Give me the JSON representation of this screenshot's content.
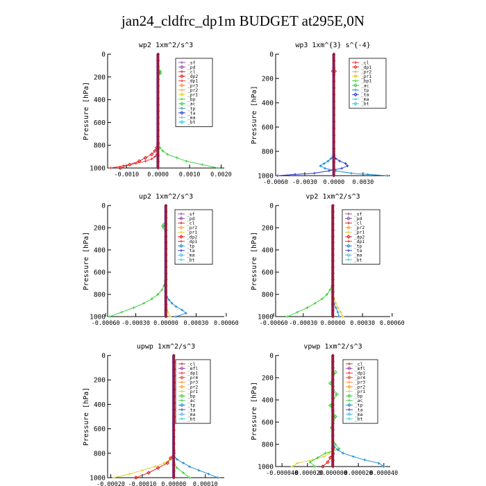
{
  "page_title": "jan24_cldfrc_dp1m  BUDGET at295E,0N",
  "chart_data": [
    {
      "type": "line",
      "title": "wp2  1xm^2/s^3",
      "ylabel": "Pressure [hPa]",
      "ylim": [
        1000,
        0
      ],
      "xlim": [
        -0.0016,
        0.0021
      ],
      "yticks": [
        0,
        200,
        400,
        600,
        800,
        1000
      ],
      "yticklabels": [
        "0",
        "200",
        "400",
        "600",
        "800",
        "1000"
      ],
      "xticks": [
        -0.001,
        0,
        0.001,
        0.002
      ],
      "xticklabels": [
        "-0.0010",
        "0.0000",
        "0.0010",
        "0.0020"
      ],
      "legend": [
        "_sf",
        "_pd",
        "_cl",
        "_dp2",
        "_dp1",
        "_pr3",
        "_pr2",
        "_pr1",
        "_bp",
        "_ac",
        "_tp",
        "_ta",
        "_ma",
        "_bt"
      ],
      "series": [
        {
          "name": "_cl",
          "color": "#dd1111",
          "marker": "diamond",
          "y": [
            1000,
            970,
            940,
            910,
            880,
            850,
            820,
            790
          ],
          "x": [
            -0.0012,
            -0.0009,
            -0.0006,
            -0.0004,
            -0.0002,
            -0.0001,
            -4e-05,
            0
          ]
        },
        {
          "name": "_dp1",
          "color": "#ee2222",
          "marker": "cross",
          "y": [
            1000,
            980,
            960,
            940,
            920,
            900,
            880,
            860
          ],
          "x": [
            -0.0015,
            -0.0011,
            -0.0007,
            -0.0004,
            -0.0002,
            -0.0001,
            -4e-05,
            0
          ]
        },
        {
          "name": "_bp",
          "color": "#33cc33",
          "marker": "cross",
          "y": [
            1000,
            970,
            940,
            910,
            880,
            850,
            820,
            790
          ],
          "x": [
            0.0019,
            0.0014,
            0.0009,
            0.0006,
            0.0003,
            0.00015,
            6e-05,
            0
          ]
        },
        {
          "name": "_ac",
          "color": "#33cc33",
          "marker": "diamond",
          "y": [
            150,
            160,
            170
          ],
          "x": [
            5e-05,
            6e-05,
            5e-05
          ]
        }
      ]
    },
    {
      "type": "line",
      "title": "wp3  1xm^{3} s^{-4}",
      "ylabel": "Pressure [hPa]",
      "ylim": [
        1000,
        0
      ],
      "xlim": [
        -0.006,
        0.0058
      ],
      "yticks": [
        0,
        200,
        400,
        600,
        800,
        1000
      ],
      "yticklabels": [
        "0",
        "200",
        "400",
        "600",
        "800",
        "1000"
      ],
      "xticks": [
        -0.006,
        -0.003,
        0,
        0.003
      ],
      "xticklabels": [
        "-0.0060",
        "-0.0030",
        "0.0000",
        "0.0030"
      ],
      "legend": [
        "_cl",
        "_dp1",
        "_pr2",
        "_pr1",
        "_bp1",
        "_ac",
        "_tp",
        "_ta",
        "_ma",
        "_bt"
      ],
      "series": [
        {
          "name": "_tp",
          "color": "#2233cc",
          "marker": "cross",
          "y": [
            1000,
            990,
            980,
            960,
            940,
            920,
            900,
            880,
            860,
            840,
            820,
            800
          ],
          "x": [
            -0.0058,
            -0.004,
            -0.002,
            -0.0005,
            0.0008,
            0.0014,
            0.0012,
            0.0006,
            0.0002,
            0,
            0,
            0
          ]
        },
        {
          "name": "_ta",
          "color": "#1188cc",
          "marker": "cross",
          "y": [
            1000,
            990,
            980,
            960,
            940,
            920,
            900,
            880,
            860,
            840,
            820
          ],
          "x": [
            0.0055,
            0.0035,
            0.0018,
            0.0002,
            -0.0009,
            -0.0014,
            -0.001,
            -0.0006,
            -0.0003,
            -0.0001,
            0
          ]
        },
        {
          "name": "_cl",
          "color": "#dd1111",
          "marker": "diamond",
          "y": [
            140,
            140
          ],
          "x": [
            -0.0001,
            0.0001
          ]
        }
      ]
    },
    {
      "type": "line",
      "title": "up2  1xm^2/s^3",
      "ylabel": "Pressure [hPa]",
      "ylim": [
        1000,
        0
      ],
      "xlim": [
        -0.00058,
        0.00058
      ],
      "yticks": [
        0,
        200,
        400,
        600,
        800,
        1000
      ],
      "yticklabels": [
        "0",
        "200",
        "400",
        "600",
        "800",
        "1000"
      ],
      "xticks": [
        -0.0006,
        -0.0003,
        0,
        0.0003,
        0.0006
      ],
      "xticklabels": [
        "-0.00060",
        "-0.00030",
        "0.00000",
        "0.00030",
        "0.00060"
      ],
      "legend": [
        "_sf",
        "_pd",
        "_cl",
        "_pr2",
        "_pr1",
        "_dp2",
        "_dp1",
        "_tp",
        "_ta",
        "_ma",
        "_bt"
      ],
      "series": [
        {
          "name": "_dp1",
          "color": "#33cc33",
          "marker": "cross",
          "y": [
            1000,
            960,
            920,
            880,
            840,
            800,
            760,
            720,
            680,
            640
          ],
          "x": [
            -0.00056,
            -0.00044,
            -0.00032,
            -0.00022,
            -0.00014,
            -8e-05,
            -4e-05,
            -2e-05,
            -1e-05,
            0
          ]
        },
        {
          "name": "_tp",
          "color": "#1188cc",
          "marker": "cross",
          "y": [
            1000,
            970,
            940,
            910,
            880,
            850,
            820,
            790,
            760
          ],
          "x": [
            0.0001,
            0.0002,
            0.00016,
            0.0001,
            6e-05,
            3e-05,
            1e-05,
            0,
            0
          ]
        },
        {
          "name": "_pr1",
          "color": "#ddcc22",
          "marker": "cross",
          "y": [
            1000,
            960,
            920,
            880
          ],
          "x": [
            4e-05,
            2e-05,
            1e-05,
            0
          ]
        },
        {
          "name": "_dp2",
          "color": "#33cc33",
          "marker": "diamond",
          "y": [
            170,
            185,
            200
          ],
          "x": [
            -2e-05,
            -3e-05,
            -2e-05
          ]
        }
      ]
    },
    {
      "type": "line",
      "title": "vp2  1xm^2/s^3",
      "ylabel": "Pressure [hPa]",
      "ylim": [
        1000,
        0
      ],
      "xlim": [
        -0.00058,
        0.00058
      ],
      "yticks": [
        0,
        200,
        400,
        600,
        800,
        1000
      ],
      "yticklabels": [
        "0",
        "200",
        "400",
        "600",
        "800",
        "1000"
      ],
      "xticks": [
        -0.0006,
        -0.0003,
        0,
        0.0003,
        0.0006
      ],
      "xticklabels": [
        "-0.00060",
        "-0.00030",
        "0.00000",
        "0.00030",
        "0.00060"
      ],
      "legend": [
        "_sf",
        "_pd",
        "_cl",
        "_pr2",
        "_pr1",
        "_dp2",
        "_dp1",
        "_tp",
        "_ta",
        "_ma",
        "_bt"
      ],
      "series": [
        {
          "name": "_dp1",
          "color": "#33cc33",
          "marker": "cross",
          "y": [
            1000,
            960,
            920,
            880,
            840,
            800,
            760,
            720,
            680,
            640
          ],
          "x": [
            -0.00046,
            -0.00036,
            -0.00026,
            -0.00018,
            -0.00011,
            -6e-05,
            -3e-05,
            -1e-05,
            0,
            0
          ]
        },
        {
          "name": "_pr1",
          "color": "#ddcc22",
          "marker": "cross",
          "y": [
            1000,
            960,
            920,
            880,
            840,
            800
          ],
          "x": [
            0.0001,
            8e-05,
            5e-05,
            3e-05,
            1e-05,
            0
          ]
        },
        {
          "name": "_tp",
          "color": "#1188cc",
          "marker": "cross",
          "y": [
            1000,
            960,
            920,
            880,
            840
          ],
          "x": [
            6e-05,
            5e-05,
            3e-05,
            1e-05,
            0
          ]
        }
      ]
    },
    {
      "type": "line",
      "title": "upwp  1xm^2/s^3",
      "ylabel": "Pressure [hPa]",
      "ylim": [
        1000,
        0
      ],
      "xlim": [
        -0.00021,
        0.00016
      ],
      "yticks": [
        0,
        200,
        400,
        600,
        800,
        1000
      ],
      "yticklabels": [
        "0",
        "200",
        "400",
        "600",
        "800",
        "1000"
      ],
      "xticks": [
        -0.0002,
        -0.0001,
        0,
        0.0001
      ],
      "xticklabels": [
        "-0.00020",
        "-0.00010",
        "0.00000",
        "0.00010"
      ],
      "legend": [
        "_cl",
        "_mfl",
        "_dp1",
        "_pr4",
        "_pr3",
        "_pr2",
        "_pr1",
        "_bp",
        "_ac",
        "_tp",
        "_ta",
        "_ma",
        "_bt"
      ],
      "series": [
        {
          "name": "_pr1",
          "color": "#ddcc22",
          "marker": "cross",
          "y": [
            1000,
            970,
            940,
            910,
            880,
            850,
            820,
            790
          ],
          "x": [
            -0.00019,
            -0.00014,
            -0.0001,
            -6e-05,
            -3e-05,
            -1e-05,
            0,
            0
          ]
        },
        {
          "name": "_dp1",
          "color": "#dd1111",
          "marker": "diamond",
          "y": [
            1000,
            960,
            920,
            880,
            840,
            800
          ],
          "x": [
            -0.00012,
            -8e-05,
            -5e-05,
            -2e-05,
            -1e-05,
            0
          ]
        },
        {
          "name": "_tp",
          "color": "#1188cc",
          "marker": "cross",
          "y": [
            1000,
            970,
            940,
            910,
            880,
            850,
            820,
            790
          ],
          "x": [
            0.00014,
            0.00011,
            8e-05,
            5e-05,
            3e-05,
            1e-05,
            0,
            0
          ]
        },
        {
          "name": "_bp",
          "color": "#33cc33",
          "marker": "cross",
          "y": [
            1000,
            960,
            920,
            880,
            840
          ],
          "x": [
            5e-05,
            3e-05,
            1e-05,
            0,
            0
          ]
        }
      ]
    },
    {
      "type": "line",
      "title": "vpwp  1xm^2/s^3",
      "ylabel": "Pressure [hPa]",
      "ylim": [
        1000,
        0
      ],
      "xlim": [
        -4.5e-05,
        4.5e-05
      ],
      "yticks": [
        0,
        200,
        400,
        600,
        800,
        1000
      ],
      "yticklabels": [
        "0",
        "200",
        "400",
        "600",
        "800",
        "1000"
      ],
      "xticks": [
        -4e-05,
        -2e-05,
        0,
        2e-05,
        4e-05
      ],
      "xticklabels": [
        "-0.000040",
        "-0.000020",
        "0.000000",
        "0.000020",
        "0.000040"
      ],
      "legend": [
        "_cl",
        "_mfl",
        "_dp1",
        "_pr4",
        "_pr3",
        "_pr2",
        "_pr1",
        "_bp",
        "_ac",
        "_tp",
        "_ta",
        "_ma",
        "_bt"
      ],
      "series": [
        {
          "name": "_pr1",
          "color": "#ddcc22",
          "marker": "cross",
          "y": [
            1000,
            970,
            940,
            910,
            880,
            850,
            820,
            790
          ],
          "x": [
            -3.2e-05,
            -2.8e-05,
            -1.6e-05,
            -7e-06,
            -3e-06,
            0,
            1e-06,
            0
          ]
        },
        {
          "name": "_bp",
          "color": "#33cc33",
          "marker": "cross",
          "y": [
            1000,
            960,
            920,
            880,
            840,
            800,
            760
          ],
          "x": [
            -1.4e-05,
            -1.8e-05,
            -1.2e-05,
            -6e-06,
            5e-06,
            2e-06,
            0
          ]
        },
        {
          "name": "_tp",
          "color": "#1188cc",
          "marker": "cross",
          "y": [
            1000,
            970,
            940,
            910,
            880,
            850,
            820,
            790
          ],
          "x": [
            4e-05,
            3.6e-05,
            2.5e-05,
            1.6e-05,
            8e-06,
            4e-06,
            1e-06,
            0
          ]
        },
        {
          "name": "_dp1",
          "color": "#dd1111",
          "marker": "diamond",
          "y": [
            1000,
            960,
            920,
            880,
            840
          ],
          "x": [
            -8e-06,
            -4e-06,
            -2e-06,
            0,
            0
          ]
        },
        {
          "name": "_ac",
          "color": "#33cc33",
          "marker": "diamond",
          "y": [
            150,
            250,
            350,
            450,
            550,
            650
          ],
          "x": [
            2e-06,
            -2e-06,
            3e-06,
            -2e-06,
            2e-06,
            -1e-06
          ]
        }
      ]
    }
  ]
}
